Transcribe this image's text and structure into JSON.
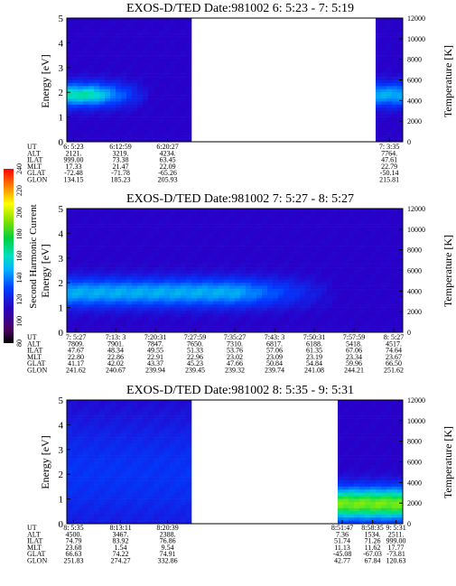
{
  "colorbar": {
    "label": "Second Harmonic Current",
    "ticks": [
      "80",
      "100",
      "120",
      "140",
      "160",
      "180",
      "200",
      "220",
      "240"
    ]
  },
  "chart_data": [
    {
      "type": "heatmap",
      "title": "EXOS-D/TED   Date:981002  6: 5:23 - 7: 5:19",
      "ylabel": "Energy [eV]",
      "ylabel_right": "Temperature [K]",
      "ylim": [
        0,
        5
      ],
      "yticks": [
        "0",
        "1",
        "2",
        "3",
        "4",
        "5"
      ],
      "ylim_right": [
        0,
        12000
      ],
      "yticks_right": [
        "0",
        "2000",
        "4000",
        "6000",
        "8000",
        "10000",
        "12000"
      ],
      "table": {
        "rows": [
          {
            "label": "UT",
            "values": [
              "6: 5:23",
              "6:12:59",
              "6:20:27",
              "7: 3:35"
            ]
          },
          {
            "label": "ALT",
            "values": [
              "2121.",
              "3219.",
              "4234.",
              "7764."
            ]
          },
          {
            "label": "ILAT",
            "values": [
              "999.00",
              "73.38",
              "63.45",
              "47.61"
            ]
          },
          {
            "label": "MLT",
            "values": [
              "17.33",
              "21.47",
              "22.09",
              "22.79"
            ]
          },
          {
            "label": "GLAT",
            "values": [
              "-72.48",
              "-71.78",
              "-65.26",
              "-50.14"
            ]
          },
          {
            "label": "GLON",
            "values": [
              "134.15",
              "185.23",
              "205.93",
              "215.81"
            ]
          }
        ]
      },
      "data_segments": [
        {
          "x_start": 0.0,
          "x_end": 0.36,
          "band_center_ev": 1.9,
          "band_halfwidth_ev": 0.5,
          "max_intensity": 0.7,
          "fade_from": 0.08
        },
        {
          "x_start": 0.93,
          "x_end": 1.0,
          "band_center_ev": 1.9,
          "band_halfwidth_ev": 0.5,
          "max_intensity": 0.55,
          "fade_from": 1.0
        }
      ]
    },
    {
      "type": "heatmap",
      "title": "EXOS-D/TED   Date:981002  7: 5:27 - 8: 5:27",
      "ylabel": "Energy [eV]",
      "ylabel_right": "Temperature [K]",
      "ylim": [
        0,
        5
      ],
      "yticks": [
        "0",
        "1",
        "2",
        "3",
        "4",
        "5"
      ],
      "ylim_right": [
        0,
        12000
      ],
      "yticks_right": [
        "0",
        "2000",
        "4000",
        "6000",
        "8000",
        "10000",
        "12000"
      ],
      "table": {
        "rows": [
          {
            "label": "UT",
            "values": [
              "7: 5:27",
              "7:13: 3",
              "7:20:31",
              "7:27:59",
              "7:35:27",
              "7:43: 3",
              "7:50:31",
              "7:57:59",
              "8: 5:27"
            ]
          },
          {
            "label": "ALT",
            "values": [
              "7809.",
              "7901.",
              "7847.",
              "7650.",
              "7310.",
              "6817.",
              "6188.",
              "5418.",
              "4517."
            ]
          },
          {
            "label": "ILAT",
            "values": [
              "47.67",
              "48.34",
              "49.55",
              "51.33",
              "53.76",
              "57.06",
              "61.35",
              "67.06",
              "74.64"
            ]
          },
          {
            "label": "MLT",
            "values": [
              "22.80",
              "22.86",
              "22.91",
              "22.96",
              "23.02",
              "23.09",
              "23.19",
              "23.34",
              "23.67"
            ]
          },
          {
            "label": "GLAT",
            "values": [
              "41.17",
              "42.02",
              "43.37",
              "45.23",
              "47.66",
              "50.84",
              "54.84",
              "59.96",
              "66.50"
            ]
          },
          {
            "label": "GLON",
            "values": [
              "241.62",
              "240.67",
              "239.94",
              "239.45",
              "239.32",
              "239.74",
              "241.08",
              "244.21",
              "251.62"
            ]
          }
        ]
      },
      "data_segments": [
        {
          "x_start": 0.0,
          "x_end": 1.0,
          "band_center_ev": 1.6,
          "band_halfwidth_ev": 0.6,
          "max_intensity": 0.55,
          "fade_from": 0.5
        }
      ]
    },
    {
      "type": "heatmap",
      "title": "EXOS-D/TED   Date:981002  8: 5:35 - 9: 5:31",
      "ylabel": "Energy [eV]",
      "ylabel_right": "Temperature [K]",
      "ylim": [
        0,
        5
      ],
      "yticks": [
        "0",
        "1",
        "2",
        "3",
        "4",
        "5"
      ],
      "ylim_right": [
        0,
        12000
      ],
      "yticks_right": [
        "0",
        "2000",
        "4000",
        "6000",
        "8000",
        "10000",
        "12000"
      ],
      "table": {
        "rows": [
          {
            "label": "UT",
            "values": [
              "8: 5:35",
              "8:13:11",
              "8:20:39",
              "8:51:47",
              "8:58:35",
              "9: 5:31"
            ]
          },
          {
            "label": "ALT",
            "values": [
              "4500.",
              "3467.",
              "2388.",
              "7.36",
              "1534.",
              "2511."
            ]
          },
          {
            "label": "ILAT",
            "values": [
              "74.79",
              "83.92",
              "76.86",
              "51.74",
              "71.26",
              "999.00"
            ]
          },
          {
            "label": "MLT",
            "values": [
              "23.68",
              "1.54",
              "9.54",
              "11.13",
              "11.62",
              "17.77"
            ]
          },
          {
            "label": "GLAT",
            "values": [
              "66.63",
              "74.22",
              "74.91",
              "-45.08",
              "-67.03",
              "-73.81"
            ]
          },
          {
            "label": "GLON",
            "values": [
              "251.83",
              "274.27",
              "332.86",
              "42.77",
              "67.84",
              "120.63"
            ]
          }
        ]
      },
      "data_segments": [
        {
          "x_start": 0.0,
          "x_end": 0.36,
          "band_center_ev": 2.0,
          "band_halfwidth_ev": 2.5,
          "max_intensity": 0.25,
          "fade_from": 1.0
        },
        {
          "x_start": 0.82,
          "x_end": 1.0,
          "band_center_ev": 0.8,
          "band_halfwidth_ev": 0.7,
          "max_intensity": 0.95,
          "fade_from": 1.0
        }
      ]
    }
  ]
}
